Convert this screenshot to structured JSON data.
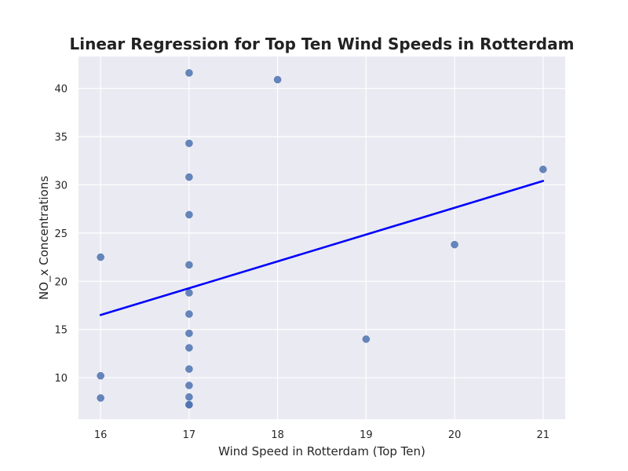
{
  "chart_data": {
    "type": "scatter",
    "title": "Linear Regression for Top Ten Wind Speeds in Rotterdam",
    "xlabel": "Wind Speed in Rotterdam (Top Ten)",
    "ylabel": "NO_x Concentrations",
    "xlim": [
      15.75,
      21.25
    ],
    "ylim": [
      5.7,
      43.3
    ],
    "xticks": [
      16,
      17,
      18,
      19,
      20,
      21
    ],
    "yticks": [
      10,
      15,
      20,
      25,
      30,
      35,
      40
    ],
    "grid": true,
    "colors": {
      "background": "#eaeaf2",
      "grid": "#ffffff",
      "points": "#4c72b0",
      "regression_line": "#0000ff"
    },
    "series": [
      {
        "type": "scatter",
        "x": [
          16,
          16,
          16,
          17,
          17,
          17,
          17,
          17,
          17,
          17,
          17,
          17,
          17,
          17,
          17,
          17,
          17,
          18,
          19,
          20,
          21
        ],
        "y": [
          22.5,
          10.2,
          7.9,
          41.6,
          34.3,
          30.8,
          26.9,
          21.7,
          18.8,
          16.6,
          14.6,
          13.1,
          10.9,
          9.2,
          8.0,
          7.2,
          7.2,
          40.9,
          14.0,
          23.8,
          31.6
        ]
      },
      {
        "type": "line",
        "x": [
          16,
          21
        ],
        "y": [
          16.5,
          30.4
        ]
      }
    ]
  }
}
